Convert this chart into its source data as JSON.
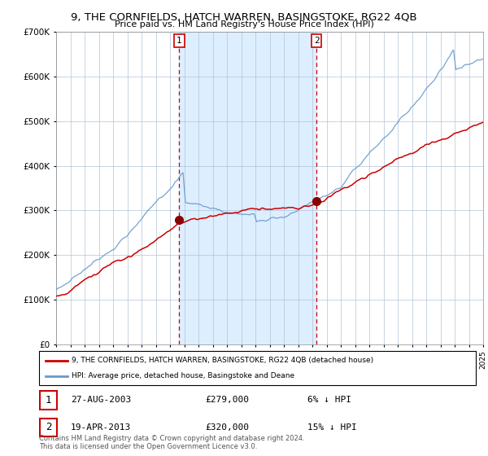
{
  "title": "9, THE CORNFIELDS, HATCH WARREN, BASINGSTOKE, RG22 4QB",
  "subtitle": "Price paid vs. HM Land Registry's House Price Index (HPI)",
  "legend_label_red": "9, THE CORNFIELDS, HATCH WARREN, BASINGSTOKE, RG22 4QB (detached house)",
  "legend_label_blue": "HPI: Average price, detached house, Basingstoke and Deane",
  "transaction1_date": "27-AUG-2003",
  "transaction1_price": 279000,
  "transaction1_pct": "6% ↓ HPI",
  "transaction2_date": "19-APR-2013",
  "transaction2_price": 320000,
  "transaction2_pct": "15% ↓ HPI",
  "footer": "Contains HM Land Registry data © Crown copyright and database right 2024.\nThis data is licensed under the Open Government Licence v3.0.",
  "ylim": [
    0,
    700000
  ],
  "background_color": "#ffffff",
  "plot_bg_color": "#ffffff",
  "shading_color": "#ddeeff",
  "grid_color": "#b0c4d8",
  "red_line_color": "#cc0000",
  "blue_line_color": "#6699cc",
  "marker_color": "#880000",
  "dashed_line_color": "#cc0000",
  "transaction1_x": 2003.65,
  "transaction2_x": 2013.3
}
